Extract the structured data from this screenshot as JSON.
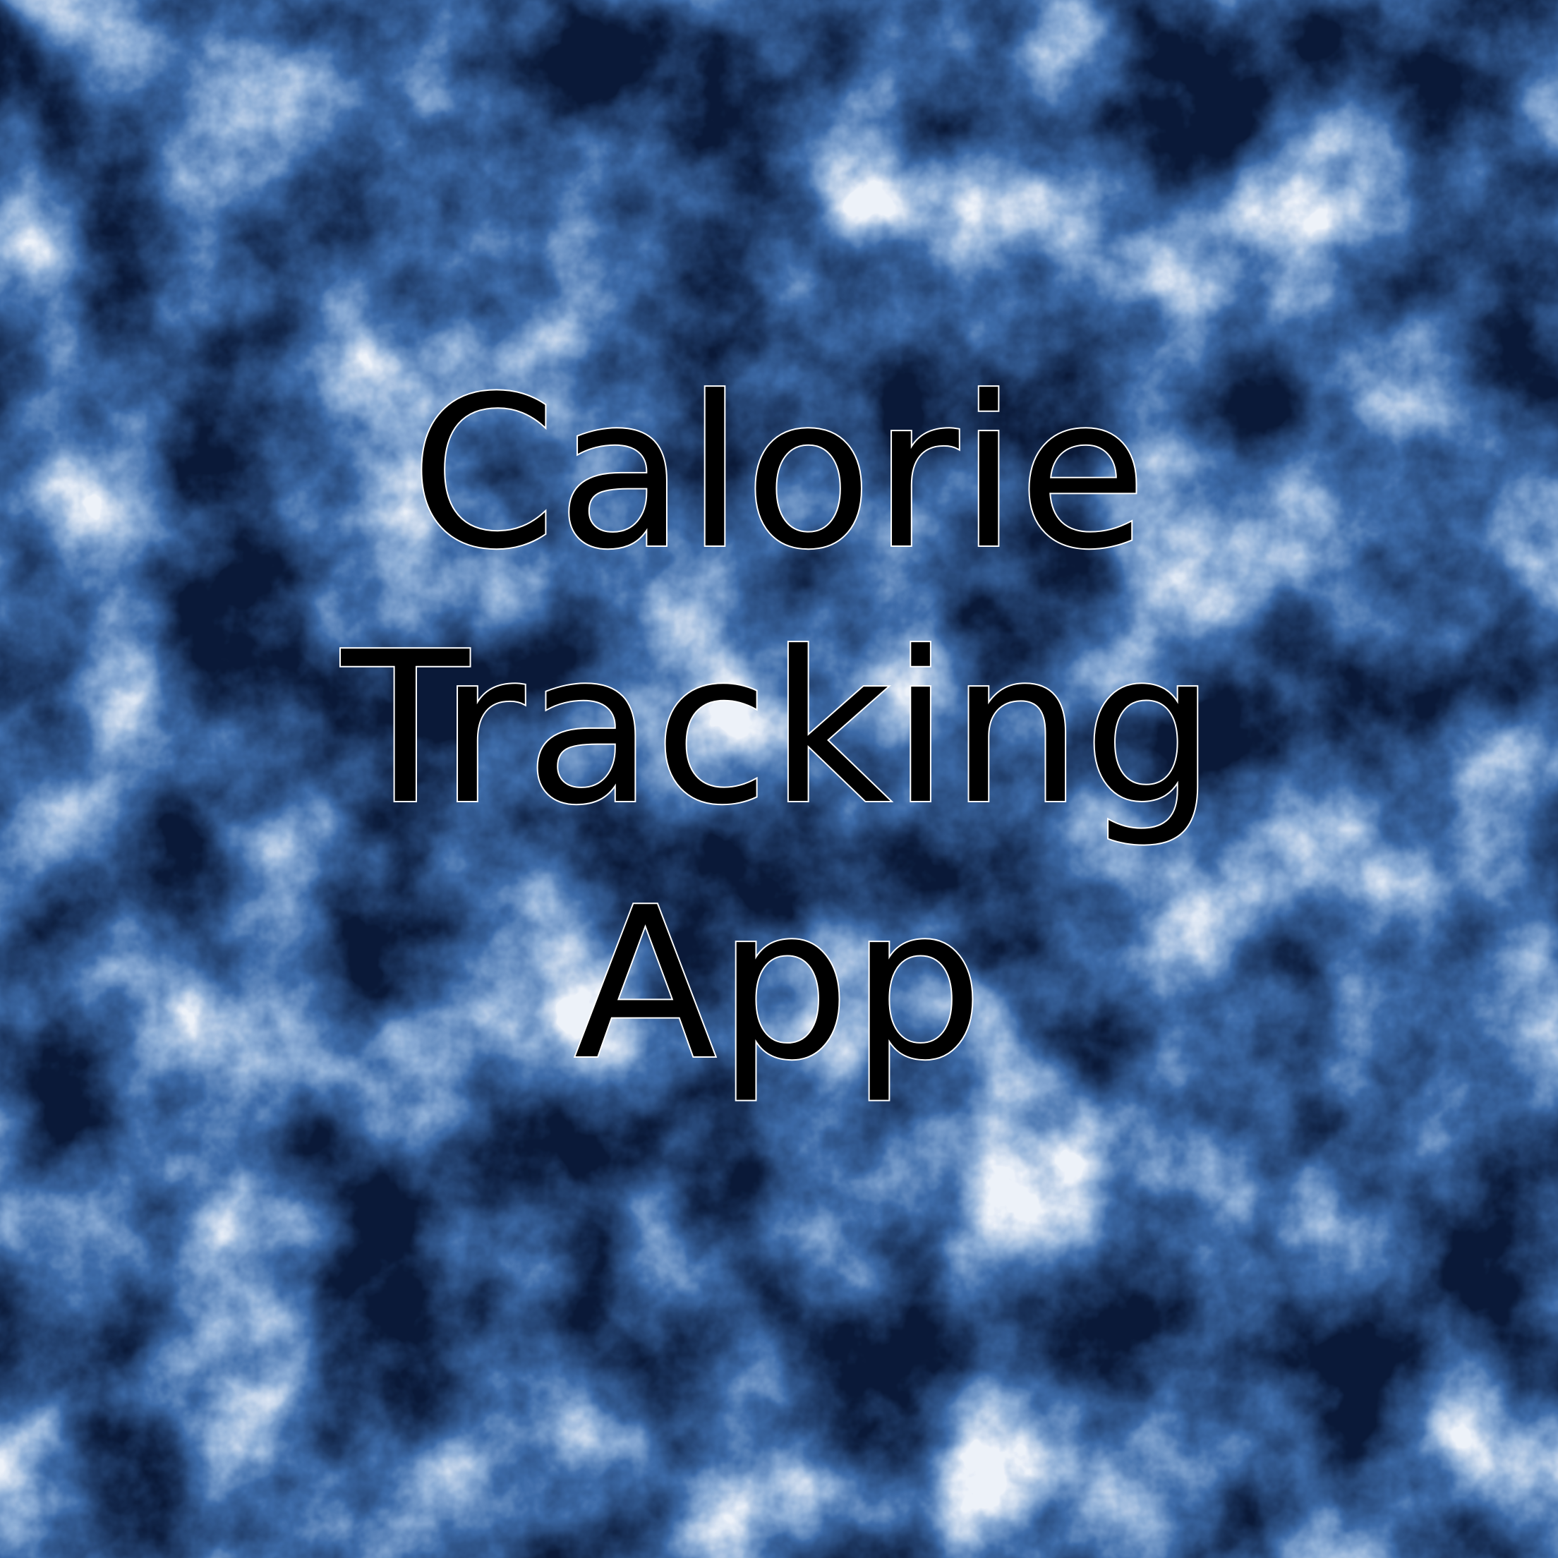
{
  "title_lines": [
    "Calorie",
    "Tracking",
    "App"
  ],
  "colors": {
    "background_base": "#3d6aa8",
    "cloud_light": "#e8eef8",
    "cloud_dark": "#0d1f3d",
    "text_fill": "#000000",
    "text_outline": "#ffffff"
  }
}
